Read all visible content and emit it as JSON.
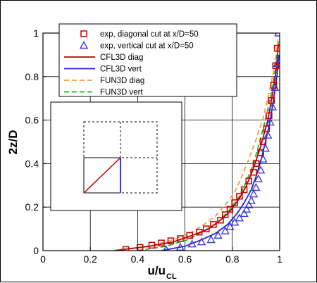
{
  "chart_data": {
    "type": "line",
    "xlabel": "u/u",
    "xlabel_sub": "CL",
    "ylabel": "2z/D",
    "xlim": [
      0,
      1
    ],
    "ylim": [
      0,
      1
    ],
    "xticks": [
      0,
      0.2,
      0.4,
      0.6,
      0.8,
      1
    ],
    "yticks": [
      0,
      0.2,
      0.4,
      0.6,
      0.8,
      1
    ],
    "xtick_labels": [
      "0",
      "0.2",
      "0.4",
      "0.6",
      "0.8",
      "1"
    ],
    "ytick_labels": [
      "0",
      "0.2",
      "0.4",
      "0.6",
      "0.8",
      "1"
    ],
    "grid": true,
    "legend_position": "top-center",
    "series": [
      {
        "name": "exp, diagonal cut at x/D=50",
        "style": "markers",
        "marker": "square",
        "color": "#c00000",
        "x": [
          0.35,
          0.41,
          0.46,
          0.5,
          0.54,
          0.58,
          0.62,
          0.66,
          0.69,
          0.72,
          0.75,
          0.77,
          0.79,
          0.81,
          0.83,
          0.85,
          0.87,
          0.89,
          0.9,
          0.92,
          0.93,
          0.945,
          0.955,
          0.965,
          0.975,
          0.983,
          0.99
        ],
        "y": [
          0.005,
          0.015,
          0.025,
          0.035,
          0.045,
          0.055,
          0.07,
          0.085,
          0.1,
          0.12,
          0.14,
          0.165,
          0.19,
          0.22,
          0.25,
          0.28,
          0.32,
          0.36,
          0.4,
          0.45,
          0.5,
          0.56,
          0.62,
          0.69,
          0.76,
          0.85,
          0.93
        ]
      },
      {
        "name": "exp, vertical cut at x/D=50",
        "style": "markers",
        "marker": "triangle",
        "color": "#3b3bdc",
        "x": [
          0.52,
          0.58,
          0.63,
          0.67,
          0.71,
          0.74,
          0.77,
          0.79,
          0.81,
          0.83,
          0.85,
          0.86,
          0.87,
          0.88,
          0.89,
          0.9,
          0.91,
          0.92,
          0.93,
          0.94,
          0.95,
          0.96,
          0.97,
          0.98,
          0.99,
          0.995
        ],
        "y": [
          0.005,
          0.015,
          0.03,
          0.04,
          0.05,
          0.07,
          0.09,
          0.11,
          0.13,
          0.15,
          0.17,
          0.19,
          0.21,
          0.23,
          0.26,
          0.29,
          0.33,
          0.37,
          0.42,
          0.47,
          0.53,
          0.59,
          0.66,
          0.75,
          0.86,
          1.0
        ]
      },
      {
        "name": "CFL3D diag",
        "style": "solid",
        "color": "#c00000",
        "x": [
          0.3,
          0.45,
          0.55,
          0.63,
          0.7,
          0.75,
          0.79,
          0.83,
          0.86,
          0.89,
          0.92,
          0.95,
          0.97,
          0.985,
          0.995
        ],
        "y": [
          0.0,
          0.02,
          0.04,
          0.07,
          0.1,
          0.14,
          0.18,
          0.24,
          0.3,
          0.38,
          0.48,
          0.6,
          0.72,
          0.83,
          0.95
        ]
      },
      {
        "name": "CFL3D vert",
        "style": "solid",
        "color": "#2424c8",
        "x": [
          0.5,
          0.6,
          0.67,
          0.73,
          0.78,
          0.82,
          0.85,
          0.88,
          0.9,
          0.92,
          0.94,
          0.96,
          0.975,
          0.988,
          0.997
        ],
        "y": [
          0.0,
          0.02,
          0.05,
          0.08,
          0.12,
          0.17,
          0.22,
          0.28,
          0.34,
          0.41,
          0.5,
          0.6,
          0.7,
          0.8,
          0.9
        ]
      },
      {
        "name": "FUN3D diag",
        "style": "dashed",
        "color": "#f0a040",
        "x": [
          0.3,
          0.45,
          0.55,
          0.62,
          0.68,
          0.73,
          0.77,
          0.81,
          0.84,
          0.87,
          0.9,
          0.93,
          0.95,
          0.97,
          0.985,
          0.995
        ],
        "y": [
          0.0,
          0.02,
          0.05,
          0.08,
          0.12,
          0.16,
          0.21,
          0.27,
          0.34,
          0.42,
          0.51,
          0.61,
          0.7,
          0.8,
          0.9,
          0.98
        ]
      },
      {
        "name": "FUN3D vert",
        "style": "dashed",
        "color": "#22b422",
        "x": [
          0.4,
          0.52,
          0.61,
          0.68,
          0.74,
          0.79,
          0.83,
          0.86,
          0.89,
          0.91,
          0.93,
          0.95,
          0.97,
          0.985,
          0.995
        ],
        "y": [
          0.0,
          0.02,
          0.05,
          0.09,
          0.13,
          0.19,
          0.25,
          0.32,
          0.4,
          0.48,
          0.56,
          0.65,
          0.75,
          0.86,
          0.96
        ]
      }
    ]
  }
}
